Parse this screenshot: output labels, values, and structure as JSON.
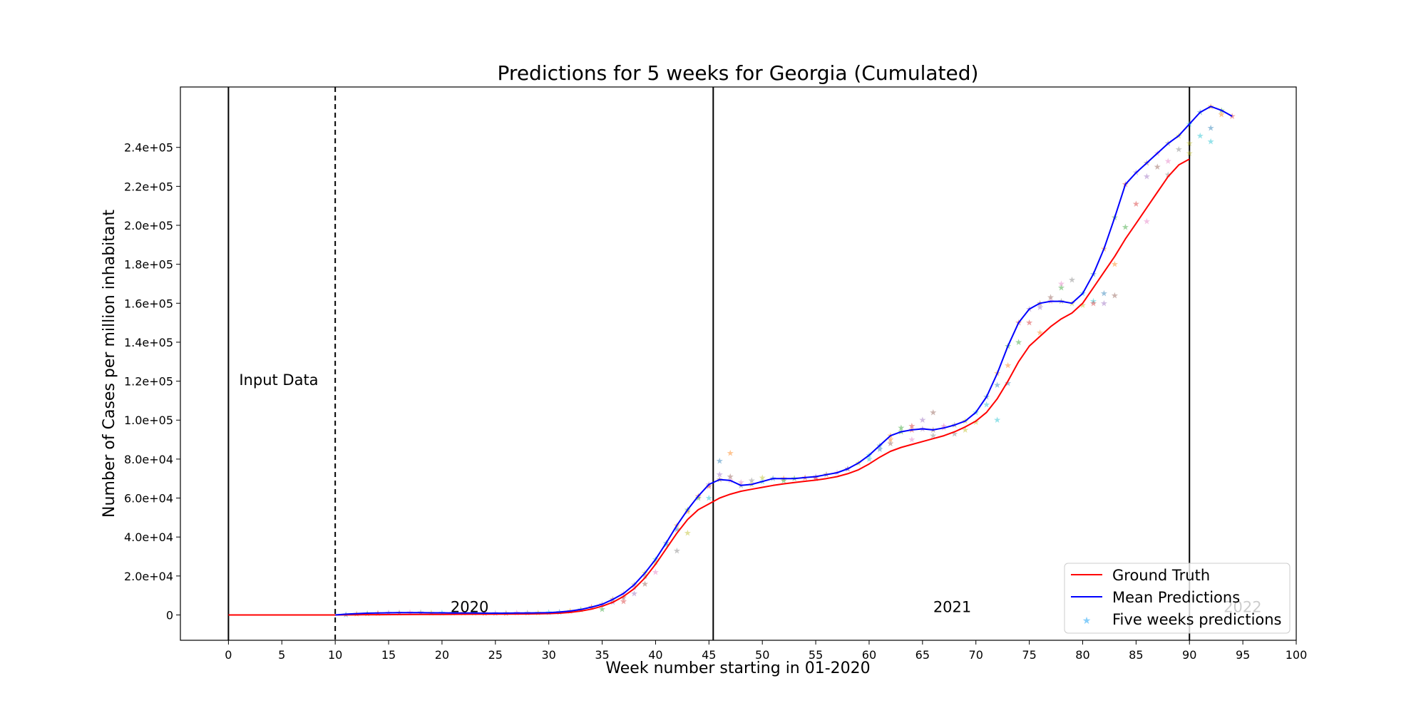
{
  "chart_data": {
    "type": "line",
    "title": "Predictions for 5 weeks for Georgia (Cumulated)",
    "xlabel": "Week number starting in 01-2020",
    "ylabel": "Number of Cases per million inhabitant",
    "xlim": [
      -4.5,
      100
    ],
    "ylim": [
      -13000,
      271000
    ],
    "x_ticks": [
      0,
      5,
      10,
      15,
      20,
      25,
      30,
      35,
      40,
      45,
      50,
      55,
      60,
      65,
      70,
      75,
      80,
      85,
      90,
      95,
      100
    ],
    "x_tick_labels": [
      "0",
      "5",
      "10",
      "15",
      "20",
      "25",
      "30",
      "35",
      "40",
      "45",
      "50",
      "55",
      "60",
      "65",
      "70",
      "75",
      "80",
      "85",
      "90",
      "95",
      "100"
    ],
    "y_ticks": [
      0,
      20000,
      40000,
      60000,
      80000,
      100000,
      120000,
      140000,
      160000,
      180000,
      200000,
      220000,
      240000
    ],
    "y_tick_labels": [
      "0",
      "2.0e+04",
      "4.0e+04",
      "6.0e+04",
      "8.0e+04",
      "1.0e+05",
      "1.2e+05",
      "1.4e+05",
      "1.6e+05",
      "1.8e+05",
      "2.0e+05",
      "2.2e+05",
      "2.4e+05"
    ],
    "grid": false,
    "legend_position": "bottom-right",
    "vertical_lines": [
      {
        "x": 0,
        "style": "solid"
      },
      {
        "x": 10,
        "style": "dashed"
      },
      {
        "x": 45.4,
        "style": "solid"
      },
      {
        "x": 90,
        "style": "solid"
      }
    ],
    "annotations": [
      {
        "text": "Input Data",
        "x": 1,
        "y": 118000,
        "color": "#000000"
      },
      {
        "text": "2020",
        "x": 20.8,
        "y": 1500,
        "color": "#000000"
      },
      {
        "text": "2021",
        "x": 66,
        "y": 1500,
        "color": "#000000"
      },
      {
        "text": "2022",
        "x": 93.2,
        "y": 1500,
        "color": "#c8c8c8"
      }
    ],
    "series": [
      {
        "name": "Ground Truth",
        "color": "#ff0000",
        "kind": "line",
        "x": [
          0,
          2,
          4,
          6,
          8,
          10,
          12,
          14,
          16,
          18,
          20,
          22,
          24,
          26,
          28,
          30,
          31,
          32,
          33,
          34,
          35,
          36,
          37,
          38,
          39,
          40,
          41,
          42,
          43,
          44,
          45,
          46,
          47,
          48,
          49,
          50,
          51,
          52,
          53,
          54,
          55,
          56,
          57,
          58,
          59,
          60,
          61,
          62,
          63,
          64,
          65,
          66,
          67,
          68,
          69,
          70,
          71,
          72,
          73,
          74,
          75,
          76,
          77,
          78,
          79,
          80,
          81,
          82,
          83,
          84,
          85,
          86,
          87,
          88,
          89,
          90
        ],
        "y": [
          0,
          0,
          0,
          0,
          0,
          0,
          100,
          150,
          200,
          250,
          300,
          350,
          400,
          450,
          500,
          700,
          900,
          1300,
          2000,
          3000,
          4500,
          6500,
          9500,
          13500,
          19000,
          26000,
          34000,
          42000,
          49000,
          54000,
          57000,
          60000,
          62000,
          63500,
          64500,
          65500,
          66500,
          67300,
          68000,
          68600,
          69200,
          70000,
          71000,
          72500,
          74500,
          77500,
          81000,
          84000,
          86000,
          87500,
          89000,
          90500,
          92000,
          94000,
          96500,
          99500,
          104000,
          111000,
          120000,
          130000,
          138000,
          143000,
          148000,
          152000,
          155000,
          160000,
          168000,
          176000,
          184000,
          193000,
          201000,
          209000,
          217000,
          225000,
          231000,
          234000
        ]
      },
      {
        "name": "Mean Predictions",
        "color": "#0000ff",
        "kind": "line",
        "x": [
          10,
          11,
          12,
          13,
          14,
          15,
          16,
          17,
          18,
          19,
          20,
          21,
          22,
          23,
          24,
          25,
          26,
          27,
          28,
          29,
          30,
          31,
          32,
          33,
          34,
          35,
          36,
          37,
          38,
          39,
          40,
          41,
          42,
          43,
          44,
          45,
          46,
          47,
          48,
          49,
          50,
          51,
          52,
          53,
          54,
          55,
          56,
          57,
          58,
          59,
          60,
          61,
          62,
          63,
          64,
          65,
          66,
          67,
          68,
          69,
          70,
          71,
          72,
          73,
          74,
          75,
          76,
          77,
          78,
          79,
          80,
          81,
          82,
          83,
          84,
          85,
          86,
          87,
          88,
          89,
          90,
          91,
          92,
          93,
          94
        ],
        "y": [
          0,
          400,
          700,
          900,
          1000,
          1100,
          1200,
          1200,
          1200,
          1100,
          1100,
          1000,
          1000,
          1000,
          900,
          900,
          900,
          1000,
          1000,
          1100,
          1200,
          1500,
          2000,
          2800,
          4000,
          5500,
          8000,
          11000,
          15500,
          21500,
          28500,
          37000,
          46000,
          54000,
          61000,
          67000,
          69500,
          69000,
          66500,
          67000,
          68500,
          70000,
          70000,
          70000,
          70500,
          71000,
          72000,
          73000,
          75000,
          78000,
          82000,
          87000,
          92000,
          94000,
          95000,
          95500,
          95000,
          96000,
          97500,
          99500,
          104000,
          112000,
          124000,
          138000,
          150000,
          157000,
          160000,
          161000,
          161000,
          160000,
          165000,
          175000,
          188000,
          204000,
          221000,
          227000,
          232000,
          237000,
          242000,
          246000,
          252000,
          258000,
          261000,
          259000,
          256000
        ]
      },
      {
        "name": "Five weeks predictions",
        "color": "#87cefa",
        "kind": "scatter",
        "palette": [
          "#1f77b4",
          "#ff7f0e",
          "#2ca02c",
          "#d62728",
          "#9467bd",
          "#8c564b",
          "#e377c2",
          "#7f7f7f",
          "#bcbd22",
          "#17becf"
        ],
        "x": [
          11,
          12,
          13,
          14,
          15,
          16,
          17,
          18,
          19,
          20,
          21,
          22,
          23,
          24,
          25,
          26,
          27,
          28,
          29,
          30,
          31,
          32,
          33,
          34,
          35,
          36,
          37,
          38,
          39,
          40,
          41,
          42,
          43,
          44,
          45,
          46,
          47,
          48,
          49,
          50,
          51,
          52,
          53,
          54,
          55,
          56,
          57,
          58,
          59,
          60,
          61,
          62,
          63,
          64,
          65,
          66,
          67,
          68,
          69,
          70,
          71,
          72,
          73,
          74,
          75,
          76,
          77,
          78,
          79,
          80,
          81,
          82,
          83,
          84,
          85,
          86,
          87,
          88,
          89,
          90,
          91,
          92,
          93,
          94,
          36,
          37,
          38,
          39,
          40,
          41,
          42,
          43,
          44,
          45,
          46,
          47,
          48,
          49,
          50,
          60,
          61,
          62,
          63,
          64,
          65,
          66,
          67,
          68,
          70,
          71,
          72,
          73,
          74,
          75,
          76,
          77,
          78,
          79,
          80,
          81,
          82,
          83,
          84,
          85,
          86,
          87,
          88,
          89,
          90,
          91,
          92,
          93,
          35,
          37,
          38,
          39,
          40,
          42,
          43,
          45,
          46,
          47,
          52,
          55,
          58,
          62,
          64,
          66,
          69,
          72,
          73,
          76,
          78,
          81,
          82,
          83,
          86,
          88,
          90,
          92
        ],
        "y": [
          200,
          500,
          800,
          900,
          1000,
          1100,
          1200,
          1200,
          1100,
          1100,
          1000,
          1000,
          1000,
          900,
          900,
          900,
          1000,
          1000,
          1100,
          1200,
          1500,
          2000,
          2800,
          4000,
          5500,
          8000,
          11000,
          15500,
          21500,
          28500,
          37000,
          46000,
          54000,
          61000,
          67000,
          69500,
          69000,
          66500,
          67000,
          68500,
          70000,
          70000,
          70000,
          70500,
          71000,
          72000,
          73000,
          75000,
          78000,
          82000,
          87000,
          92000,
          94000,
          95000,
          95500,
          95000,
          96000,
          97500,
          99500,
          104000,
          112000,
          124000,
          138000,
          150000,
          157000,
          160000,
          161000,
          161000,
          160000,
          165000,
          175000,
          188000,
          204000,
          221000,
          227000,
          232000,
          237000,
          242000,
          246000,
          252000,
          258000,
          261000,
          259000,
          256000,
          6500,
          9000,
          14000,
          20000,
          27000,
          36000,
          44000,
          53000,
          60000,
          66000,
          72000,
          71000,
          68000,
          69000,
          70500,
          80000,
          85000,
          90000,
          96000,
          97000,
          100000,
          104000,
          97000,
          93000,
          99000,
          108000,
          118000,
          128000,
          140000,
          150000,
          158000,
          163000,
          170000,
          172000,
          159000,
          161000,
          165000,
          180000,
          199000,
          211000,
          225000,
          230000,
          233000,
          239000,
          242000,
          246000,
          250000,
          257000,
          3000,
          7000,
          11000,
          16000,
          22000,
          33000,
          42000,
          60000,
          79000,
          83000,
          69000,
          70000,
          75000,
          88000,
          90000,
          92000,
          95000,
          100000,
          119000,
          145000,
          168000,
          160000,
          160000,
          164000,
          202000,
          226000,
          237000,
          243000
        ]
      }
    ]
  }
}
